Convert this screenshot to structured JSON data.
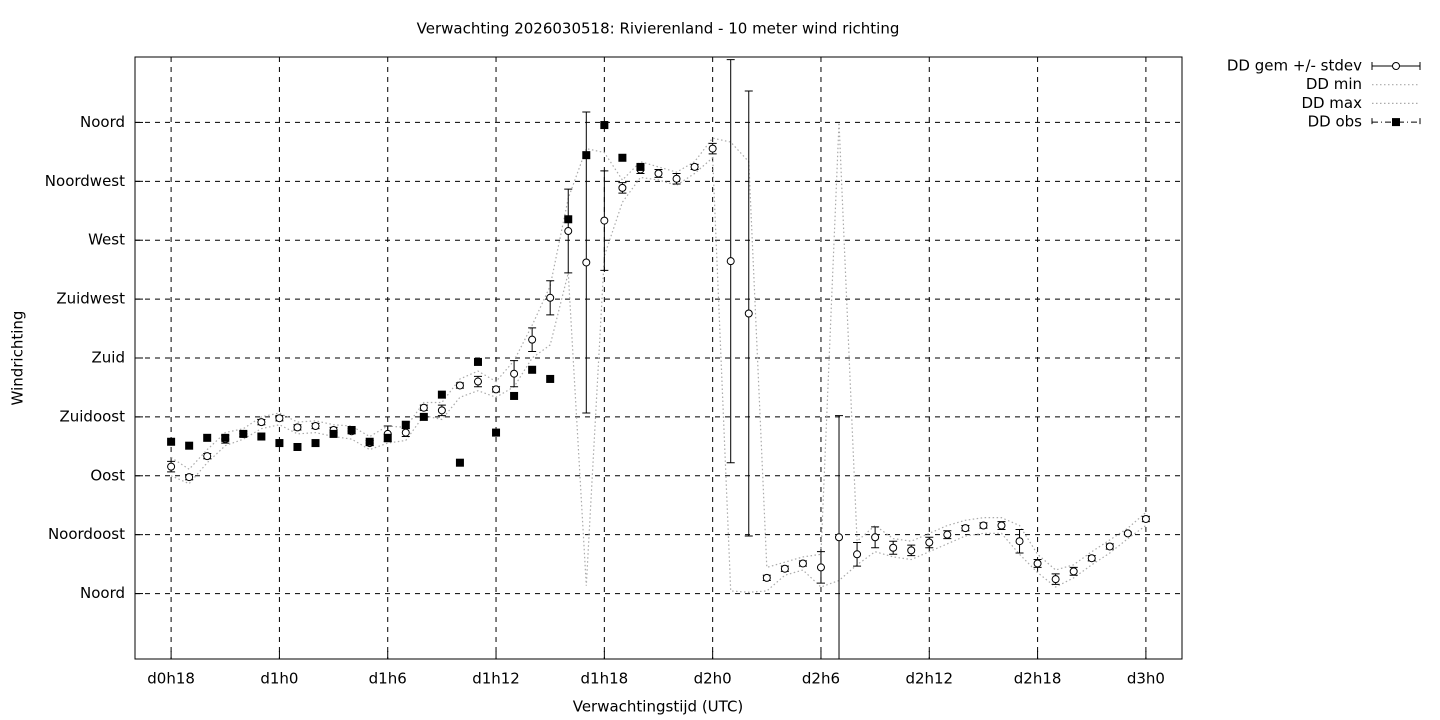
{
  "chart_data": {
    "type": "errorbar",
    "title": "Verwachting 2026030518: Rivierenland - 10 meter wind richting",
    "x_label": "Verwachtingstijd (UTC)",
    "y_label": "Windrichting",
    "xlim": [
      16,
      74
    ],
    "xticks": [
      {
        "value": 18,
        "label": "d0h18"
      },
      {
        "value": 24,
        "label": "d1h0"
      },
      {
        "value": 30,
        "label": "d1h6"
      },
      {
        "value": 36,
        "label": "d1h12"
      },
      {
        "value": 42,
        "label": "d1h18"
      },
      {
        "value": 48,
        "label": "d2h0"
      },
      {
        "value": 54,
        "label": "d2h6"
      },
      {
        "value": 60,
        "label": "d2h12"
      },
      {
        "value": 66,
        "label": "d2h18"
      },
      {
        "value": 72,
        "label": "d3h0"
      }
    ],
    "ylim": [
      -50,
      410
    ],
    "yticks": [
      {
        "value": 0,
        "label": "Noord"
      },
      {
        "value": 45,
        "label": "Noordoost"
      },
      {
        "value": 90,
        "label": "Oost"
      },
      {
        "value": 135,
        "label": "Zuidoost"
      },
      {
        "value": 180,
        "label": "Zuid"
      },
      {
        "value": 225,
        "label": "Zuidwest"
      },
      {
        "value": 270,
        "label": "West"
      },
      {
        "value": 315,
        "label": "Noordwest"
      },
      {
        "value": 360,
        "label": "Noord"
      }
    ],
    "grid": true,
    "legend": "outside-top-right",
    "x": [
      18,
      19,
      20,
      21,
      22,
      23,
      24,
      25,
      26,
      27,
      28,
      29,
      30,
      31,
      32,
      33,
      34,
      35,
      36,
      37,
      38,
      39,
      40,
      41,
      42,
      43,
      44,
      45,
      46,
      47,
      48,
      49,
      50,
      51,
      52,
      53,
      54,
      55,
      56,
      57,
      58,
      59,
      60,
      61,
      62,
      63,
      64,
      65,
      66,
      67,
      68,
      69,
      70,
      71,
      72
    ],
    "series": [
      {
        "name": "DD gem +/- stdev",
        "style": "errorbars",
        "color": "#000000",
        "values": [
          97,
          89,
          105,
          118,
          122,
          131,
          134,
          127,
          128,
          125,
          124,
          115,
          122,
          123,
          142,
          140,
          159,
          162,
          156,
          168,
          194,
          226,
          277,
          253,
          285,
          310,
          324,
          321,
          317,
          326,
          340,
          254,
          214,
          12,
          19,
          23,
          20,
          43,
          30,
          43,
          35,
          33,
          39,
          45,
          50,
          52,
          52,
          40,
          23,
          11,
          17,
          27,
          36,
          46,
          57
        ],
        "errors": [
          4,
          2,
          2,
          3,
          2,
          2,
          2,
          2,
          2,
          2,
          2,
          2,
          6,
          3,
          2,
          4,
          2,
          4,
          2,
          10,
          9,
          13,
          32,
          115,
          38,
          4,
          3,
          3,
          4,
          2,
          4,
          154,
          170,
          2,
          2,
          2,
          12,
          93,
          9,
          8,
          5,
          4,
          4,
          3,
          2,
          2,
          3,
          9,
          3,
          4,
          3,
          2,
          2,
          1,
          2
        ]
      },
      {
        "name": "DD min",
        "style": "dotted",
        "color": "#aaaaaa",
        "values": [
          90,
          84,
          100,
          113,
          118,
          126,
          129,
          122,
          123,
          120,
          118,
          110,
          115,
          117,
          136,
          133,
          150,
          155,
          150,
          158,
          180,
          190,
          245,
          6,
          258,
          299,
          318,
          316,
          312,
          321,
          333,
          2,
          1,
          2,
          14,
          18,
          5,
          10,
          22,
          32,
          28,
          26,
          32,
          38,
          44,
          46,
          46,
          30,
          16,
          5,
          12,
          22,
          31,
          42,
          52
        ]
      },
      {
        "name": "DD max",
        "style": "dotted",
        "color": "#aaaaaa",
        "values": [
          104,
          95,
          110,
          123,
          126,
          135,
          138,
          131,
          132,
          129,
          128,
          120,
          128,
          127,
          146,
          146,
          164,
          170,
          162,
          178,
          205,
          235,
          302,
          340,
          337,
          316,
          330,
          326,
          322,
          330,
          348,
          345,
          330,
          20,
          24,
          28,
          30,
          360,
          40,
          52,
          42,
          40,
          46,
          52,
          56,
          58,
          58,
          52,
          30,
          18,
          22,
          32,
          41,
          50,
          62
        ]
      },
      {
        "name": "DD obs",
        "style": "points",
        "color": "#000000",
        "values": [
          116,
          113,
          119,
          119,
          122,
          120,
          115,
          112,
          115,
          122,
          125,
          116,
          119,
          129,
          135,
          152,
          100,
          177,
          123,
          151,
          171,
          164,
          286,
          335,
          358,
          333,
          326,
          null,
          null,
          null,
          null,
          null,
          null,
          null,
          null,
          null,
          null,
          null,
          null,
          null,
          null,
          null,
          null,
          null,
          null,
          null,
          null,
          null,
          null,
          null,
          null,
          null,
          null,
          null,
          null
        ]
      }
    ]
  }
}
